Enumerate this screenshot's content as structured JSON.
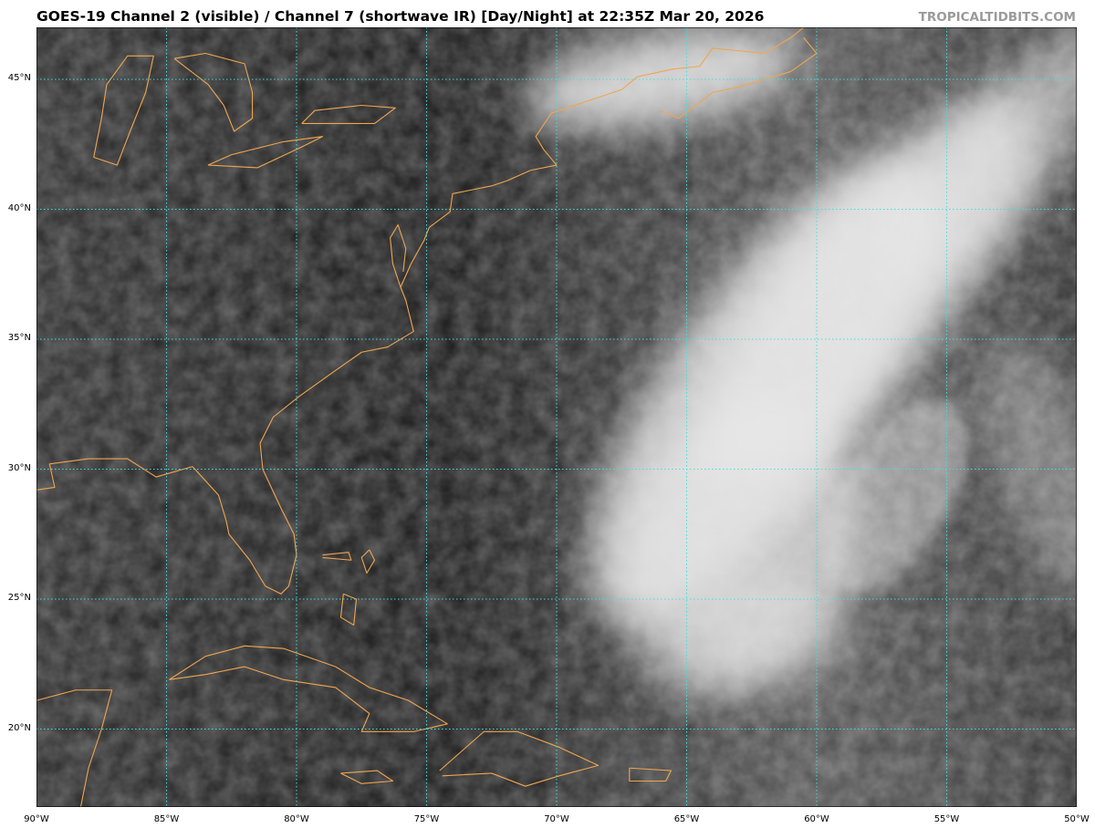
{
  "header": {
    "title": "GOES-19 Channel 2 (visible) / Channel 7 (shortwave IR) [Day/Night] at 22:35Z Mar 20, 2026",
    "brand": "TROPICALTIDBITS.COM"
  },
  "map": {
    "extent": {
      "lon": [
        -90,
        -50
      ],
      "lat": [
        17,
        47
      ]
    },
    "colors": {
      "coastline": "#f0a550",
      "gridline": "#3fe0e0",
      "background": "#2a2a2a",
      "cloud": "#e8e8e8"
    },
    "lat_labels": [
      {
        "value": 45,
        "label": "45°N"
      },
      {
        "value": 40,
        "label": "40°N"
      },
      {
        "value": 35,
        "label": "35°N"
      },
      {
        "value": 30,
        "label": "30°N"
      },
      {
        "value": 25,
        "label": "25°N"
      },
      {
        "value": 20,
        "label": "20°N"
      }
    ],
    "lon_labels": [
      {
        "value": -90,
        "label": "90°W"
      },
      {
        "value": -85,
        "label": "85°W"
      },
      {
        "value": -80,
        "label": "80°W"
      },
      {
        "value": -75,
        "label": "75°W"
      },
      {
        "value": -70,
        "label": "70°W"
      },
      {
        "value": -65,
        "label": "65°W"
      },
      {
        "value": -60,
        "label": "60°W"
      },
      {
        "value": -55,
        "label": "55°W"
      },
      {
        "value": -50,
        "label": "50°W"
      }
    ]
  }
}
